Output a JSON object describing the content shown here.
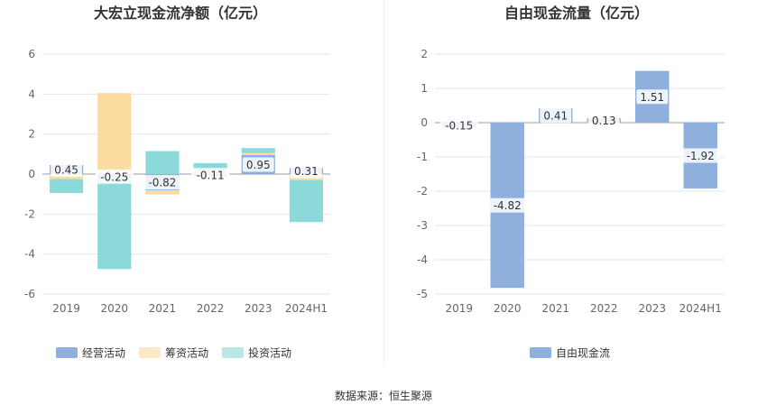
{
  "source_text": "数据来源：恒生聚源",
  "chart_data": [
    {
      "type": "bar",
      "stacked": true,
      "title": "大宏立现金流净额（亿元）",
      "categories": [
        "2019",
        "2020",
        "2021",
        "2022",
        "2023",
        "2024H1"
      ],
      "ylim": [
        -6,
        6
      ],
      "yticks": [
        -6,
        -4,
        -2,
        0,
        2,
        4,
        6
      ],
      "grid": true,
      "legend_position": "bottom",
      "labeled_series": "经营活动",
      "series": [
        {
          "name": "经营活动",
          "color": "#8fb0dc",
          "values": [
            0.45,
            -0.25,
            -0.82,
            -0.11,
            0.95,
            0.31
          ]
        },
        {
          "name": "筹资活动",
          "color": "#fcdba0",
          "values": [
            -0.25,
            4.05,
            -0.2,
            0.15,
            0.1,
            -0.3
          ]
        },
        {
          "name": "投资活动",
          "color": "#8cd9d9",
          "values": [
            -0.7,
            -4.5,
            1.15,
            0.4,
            0.25,
            -2.1
          ]
        }
      ]
    },
    {
      "type": "bar",
      "title": "自由现金流量（亿元）",
      "categories": [
        "2019",
        "2020",
        "2021",
        "2022",
        "2023",
        "2024H1"
      ],
      "ylim": [
        -5,
        2
      ],
      "yticks": [
        -5,
        -4,
        -3,
        -2,
        -1,
        0,
        1,
        2
      ],
      "grid": true,
      "legend_position": "bottom",
      "labeled_series": "自由现金流",
      "series": [
        {
          "name": "自由现金流",
          "color": "#8fb0dc",
          "values": [
            -0.15,
            -4.82,
            0.41,
            0.13,
            1.51,
            -1.92
          ]
        }
      ]
    }
  ]
}
